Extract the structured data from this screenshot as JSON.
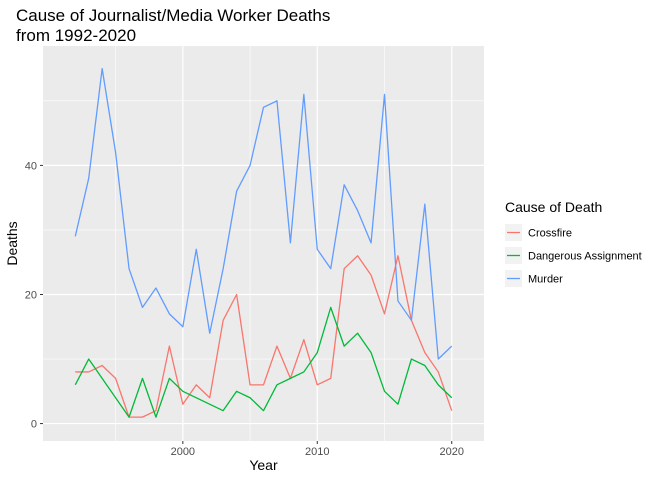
{
  "chart_data": {
    "type": "line",
    "title_lines": [
      "Cause of Journalist/Media Worker Deaths",
      "from 1992-2020"
    ],
    "xlabel": "Year",
    "ylabel": "Deaths",
    "xlim": [
      1989.6,
      2022.4
    ],
    "ylim": [
      -2.7,
      58.5
    ],
    "x_ticks": [
      2000,
      2010,
      2020
    ],
    "x_minor": [
      1995,
      2005,
      2015
    ],
    "y_ticks": [
      0,
      20,
      40
    ],
    "y_minor": [
      10,
      30,
      50
    ],
    "grid": true,
    "legend": {
      "title": "Cause of Death",
      "placement": "right"
    },
    "x": [
      1992,
      1993,
      1994,
      1995,
      1996,
      1997,
      1998,
      1999,
      2000,
      2001,
      2002,
      2003,
      2004,
      2005,
      2006,
      2007,
      2008,
      2009,
      2010,
      2011,
      2012,
      2013,
      2014,
      2015,
      2016,
      2017,
      2018,
      2019,
      2020
    ],
    "series": [
      {
        "name": "Crossfire",
        "color": "#F8766D",
        "values": [
          8,
          8,
          9,
          7,
          1,
          1,
          2,
          12,
          3,
          6,
          4,
          16,
          20,
          6,
          6,
          12,
          7,
          13,
          6,
          7,
          24,
          26,
          23,
          17,
          26,
          16,
          11,
          8,
          2
        ]
      },
      {
        "name": "Dangerous Assignment",
        "color": "#00BA38",
        "x": [
          1992,
          1993,
          1996,
          1997,
          1998,
          1999,
          2000,
          2003,
          2004,
          2005,
          2006,
          2007,
          2008,
          2009,
          2010,
          2011,
          2012,
          2013,
          2014,
          2015,
          2016,
          2017,
          2018,
          2019,
          2020
        ],
        "values": [
          6,
          10,
          1,
          7,
          1,
          7,
          5,
          2,
          5,
          4,
          2,
          6,
          7,
          8,
          11,
          18,
          12,
          14,
          11,
          5,
          3,
          10,
          9,
          6,
          4
        ]
      },
      {
        "name": "Murder",
        "color": "#619CFF",
        "values": [
          29,
          38,
          55,
          42,
          24,
          18,
          21,
          17,
          15,
          27,
          14,
          24,
          36,
          40,
          49,
          50,
          28,
          51,
          27,
          24,
          37,
          33,
          28,
          51,
          19,
          16,
          34,
          10,
          12
        ]
      }
    ]
  }
}
